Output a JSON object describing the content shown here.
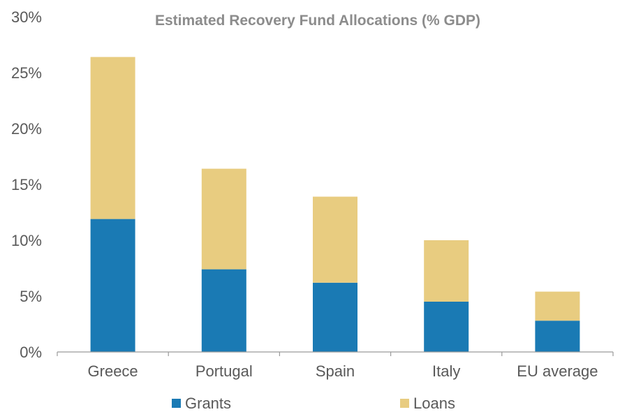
{
  "chart_data": {
    "type": "bar",
    "stacked": true,
    "title": "Estimated Recovery Fund Allocations (% GDP)",
    "xlabel": "",
    "ylabel": "",
    "ylim": [
      0,
      30
    ],
    "yticks": [
      0,
      5,
      10,
      15,
      20,
      25,
      30
    ],
    "ytick_labels": [
      "0%",
      "5%",
      "10%",
      "15%",
      "20%",
      "25%",
      "30%"
    ],
    "categories": [
      "Greece",
      "Portugal",
      "Spain",
      "Italy",
      "EU average"
    ],
    "series": [
      {
        "name": "Grants",
        "color": "#1a7ab4",
        "values": [
          11.9,
          7.4,
          6.2,
          4.5,
          2.8
        ]
      },
      {
        "name": "Loans",
        "color": "#e8cc80",
        "values": [
          14.5,
          9.0,
          7.7,
          5.5,
          2.6
        ]
      }
    ],
    "legend_position": "bottom",
    "grid": false
  }
}
